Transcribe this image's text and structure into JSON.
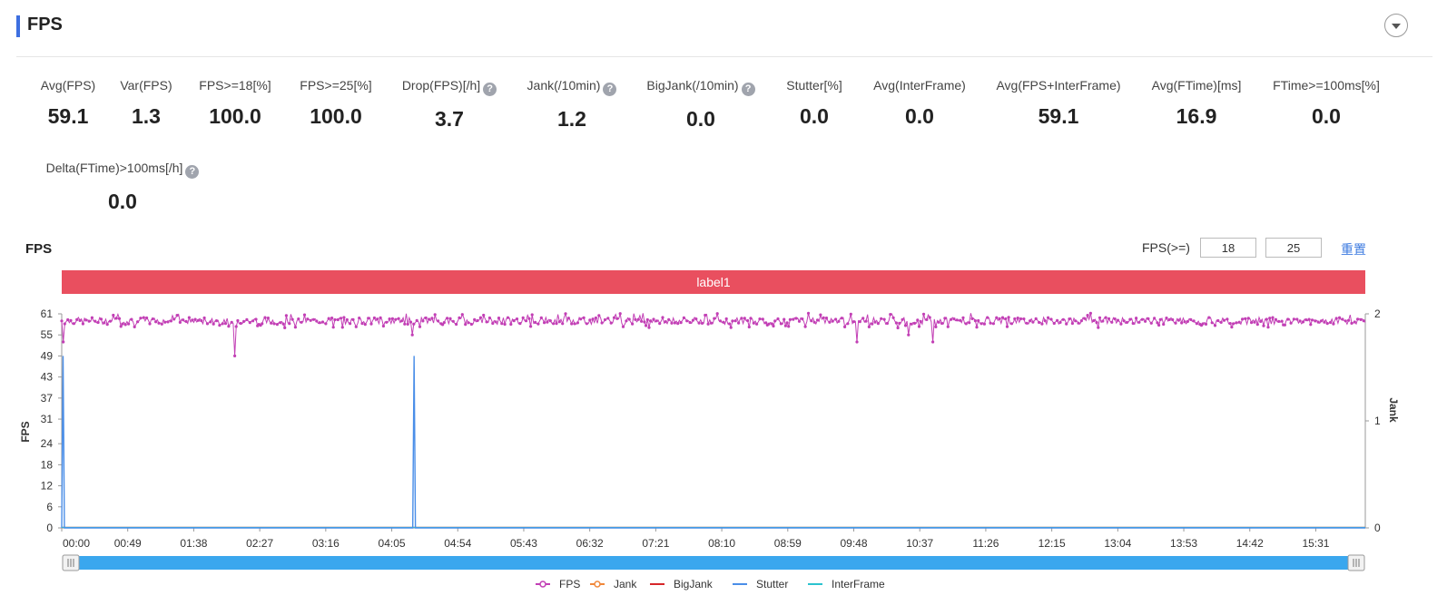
{
  "header": {
    "title": "FPS"
  },
  "metrics": [
    {
      "label": "Avg(FPS)",
      "value": "59.1",
      "help": false
    },
    {
      "label": "Var(FPS)",
      "value": "1.3",
      "help": false
    },
    {
      "label": "FPS>=18[%]",
      "value": "100.0",
      "help": false
    },
    {
      "label": "FPS>=25[%]",
      "value": "100.0",
      "help": false
    },
    {
      "label": "Drop(FPS)[/h]",
      "value": "3.7",
      "help": true
    },
    {
      "label": "Jank(/10min)",
      "value": "1.2",
      "help": true
    },
    {
      "label": "BigJank(/10min)",
      "value": "0.0",
      "help": true
    },
    {
      "label": "Stutter[%]",
      "value": "0.0",
      "help": false
    },
    {
      "label": "Avg(InterFrame)",
      "value": "0.0",
      "help": false
    },
    {
      "label": "Avg(FPS+InterFrame)",
      "value": "59.1",
      "help": false
    },
    {
      "label": "Avg(FTime)[ms]",
      "value": "16.9",
      "help": false
    },
    {
      "label": "FTime>=100ms[%]",
      "value": "0.0",
      "help": false
    },
    {
      "label": "Delta(FTime)>100ms[/h]",
      "value": "0.0",
      "help": true
    }
  ],
  "help_glyph": "?",
  "chart_header": {
    "title": "FPS",
    "fps_label": "FPS(>=)",
    "threshold_low": "18",
    "threshold_high": "25",
    "reset_label": "重置"
  },
  "label_bar": "label1",
  "colors": {
    "accent": "#3d6fe0",
    "label_bar": "#e94f5f",
    "fps": "#c23fb5",
    "jank": "#f0873a",
    "bigjank": "#d6262a",
    "stutter": "#4a8ee8",
    "interframe": "#2bc3cf",
    "slider": "#3aa7ee"
  },
  "chart_data": {
    "type": "line",
    "x_ticks": [
      "00:00",
      "00:49",
      "01:38",
      "02:27",
      "03:16",
      "04:05",
      "04:54",
      "05:43",
      "06:32",
      "07:21",
      "08:10",
      "08:59",
      "09:48",
      "10:37",
      "11:26",
      "12:15",
      "13:04",
      "13:53",
      "14:42",
      "15:31"
    ],
    "x_unit": "mm:ss",
    "x_range": [
      0,
      973
    ],
    "y_left_label": "FPS",
    "y_left_ticks": [
      0,
      6,
      12,
      18,
      24,
      31,
      37,
      43,
      49,
      55,
      61
    ],
    "y_left_range": [
      0,
      61
    ],
    "y_right_label": "Jank",
    "y_right_ticks": [
      0,
      1,
      2
    ],
    "y_right_range": [
      0,
      2
    ],
    "series": [
      {
        "name": "FPS",
        "typical_range": [
          58,
          60
        ],
        "dips": [
          [
            1,
            53
          ],
          [
            129,
            49
          ],
          [
            262,
            55
          ],
          [
            594,
            53
          ],
          [
            632,
            55
          ],
          [
            650,
            53
          ]
        ]
      },
      {
        "name": "Jank",
        "values": [
          [
            0,
            0
          ],
          [
            973,
            0
          ]
        ]
      },
      {
        "name": "BigJank",
        "values": [
          [
            0,
            0
          ],
          [
            973,
            0
          ]
        ]
      },
      {
        "name": "Stutter",
        "values": [
          [
            0,
            0
          ],
          [
            1,
            49
          ],
          [
            2,
            0
          ],
          [
            262,
            0
          ],
          [
            263,
            49
          ],
          [
            264,
            0
          ],
          [
            973,
            0
          ]
        ]
      },
      {
        "name": "InterFrame",
        "values": [
          [
            0,
            0
          ],
          [
            973,
            0
          ]
        ]
      }
    ],
    "legend_position": "bottom-center"
  },
  "legend": [
    {
      "name": "FPS",
      "marker": "circle"
    },
    {
      "name": "Jank",
      "marker": "circle"
    },
    {
      "name": "BigJank",
      "marker": "line"
    },
    {
      "name": "Stutter",
      "marker": "line"
    },
    {
      "name": "InterFrame",
      "marker": "line"
    }
  ],
  "slider": {
    "start": 0,
    "end": 1
  }
}
